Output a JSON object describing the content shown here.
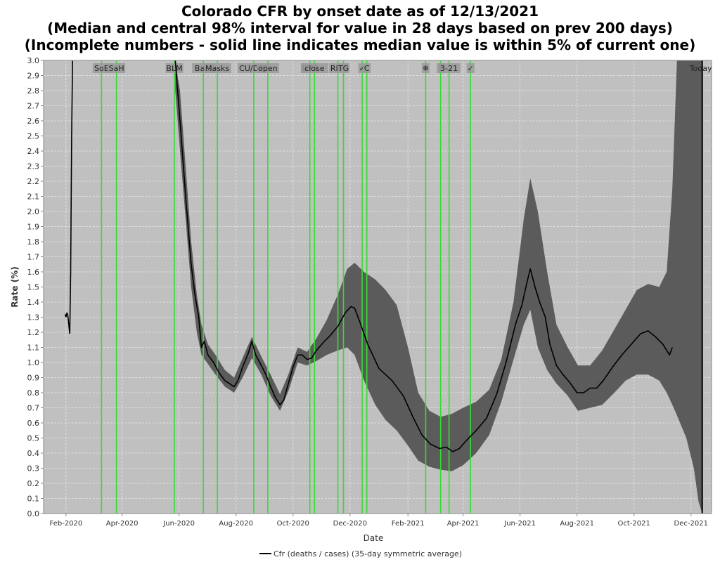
{
  "title_lines": [
    "Colorado CFR by onset date as of 12/13/2021",
    "(Median and central 98% interval for value in 28 days based on prev 200 days)",
    "(Incomplete numbers - solid line indicates median value is within 5% of current one)"
  ],
  "colors": {
    "plot_background": "#c0c0c0",
    "grid": "#e8e8e8",
    "band": "#555555",
    "median_line": "#000000",
    "event_line": "#33dd33",
    "today_line": "#000000"
  },
  "chart_data": {
    "type": "line",
    "title": "Colorado CFR by onset date as of 12/13/2021",
    "subtitle": "(Median and central 98% interval for value in 28 days based on prev 200 days)",
    "note": "(Incomplete numbers - solid line indicates median value is within 5% of current one)",
    "xlabel": "Date",
    "ylabel": "Rate (%)",
    "ylim": [
      0.0,
      3.0
    ],
    "yticks": [
      "0.0",
      "0.1",
      "0.2",
      "0.3",
      "0.4",
      "0.5",
      "0.6",
      "0.7",
      "0.8",
      "0.9",
      "1.0",
      "1.1",
      "1.2",
      "1.3",
      "1.4",
      "1.5",
      "1.6",
      "1.7",
      "1.8",
      "1.9",
      "2.0",
      "2.1",
      "2.2",
      "2.3",
      "2.4",
      "2.5",
      "2.6",
      "2.7",
      "2.8",
      "2.9",
      "3.0"
    ],
    "xlim": [
      "2020-01-08",
      "2021-12-23"
    ],
    "xticks": [
      {
        "date": "2020-02-01",
        "label": "Feb-2020"
      },
      {
        "date": "2020-04-01",
        "label": "Apr-2020"
      },
      {
        "date": "2020-06-01",
        "label": "Jun-2020"
      },
      {
        "date": "2020-08-01",
        "label": "Aug-2020"
      },
      {
        "date": "2020-10-01",
        "label": "Oct-2020"
      },
      {
        "date": "2020-12-01",
        "label": "Dec-2020"
      },
      {
        "date": "2021-02-01",
        "label": "Feb-2021"
      },
      {
        "date": "2021-04-01",
        "label": "Apr-2021"
      },
      {
        "date": "2021-06-01",
        "label": "Jun-2021"
      },
      {
        "date": "2021-08-01",
        "label": "Aug-2021"
      },
      {
        "date": "2021-10-01",
        "label": "Oct-2021"
      },
      {
        "date": "2021-12-01",
        "label": "Dec-2021"
      }
    ],
    "grid": true,
    "legend": {
      "position": "bottom",
      "entries": [
        "Cfr (deaths / cases) (35-day symmetric average)"
      ]
    },
    "events": [
      {
        "date": "2020-03-10",
        "label": "SoE"
      },
      {
        "date": "2020-03-26",
        "label": "SaH"
      },
      {
        "date": "2020-05-27",
        "label": "BLM"
      },
      {
        "date": "2020-06-27",
        "label": "Bars"
      },
      {
        "date": "2020-07-12",
        "label": "Masks"
      },
      {
        "date": "2020-08-20",
        "label": "CU/DPS"
      },
      {
        "date": "2020-09-04",
        "label": "open"
      },
      {
        "date": "2020-10-19",
        "label": "DPS"
      },
      {
        "date": "2020-10-24",
        "label": "close"
      },
      {
        "date": "2020-11-18",
        "label": "RET"
      },
      {
        "date": "2020-11-24",
        "label": "TG"
      },
      {
        "date": "2020-12-14",
        "label": "✓"
      },
      {
        "date": "2020-12-19",
        "label": "C"
      },
      {
        "date": "2021-02-20",
        "label": "❄"
      },
      {
        "date": "2021-03-08",
        "label": "3"
      },
      {
        "date": "2021-03-17",
        "label": "3-21"
      },
      {
        "date": "2021-04-09",
        "label": "✓"
      }
    ],
    "today": {
      "date": "2021-12-13",
      "label": "Today"
    },
    "early_series": [
      {
        "x": "2020-01-31",
        "y": 1.32
      },
      {
        "x": "2020-02-01",
        "y": 1.3
      },
      {
        "x": "2020-02-02",
        "y": 1.33
      },
      {
        "x": "2020-02-03",
        "y": 1.31
      },
      {
        "x": "2020-02-05",
        "y": 1.19
      },
      {
        "x": "2020-02-06",
        "y": 1.6
      },
      {
        "x": "2020-02-07",
        "y": 2.5
      },
      {
        "x": "2020-02-08",
        "y": 3.0
      }
    ],
    "series": [
      {
        "name": "Cfr (deaths / cases) (35-day symmetric average)",
        "points": [
          {
            "x": "2020-05-28",
            "y": 3.0
          },
          {
            "x": "2020-06-02",
            "y": 2.6
          },
          {
            "x": "2020-06-08",
            "y": 2.1
          },
          {
            "x": "2020-06-14",
            "y": 1.65
          },
          {
            "x": "2020-06-18",
            "y": 1.45
          },
          {
            "x": "2020-06-22",
            "y": 1.3
          },
          {
            "x": "2020-06-25",
            "y": 1.1
          },
          {
            "x": "2020-06-28",
            "y": 1.14
          },
          {
            "x": "2020-07-02",
            "y": 1.05
          },
          {
            "x": "2020-07-08",
            "y": 1.0
          },
          {
            "x": "2020-07-14",
            "y": 0.93
          },
          {
            "x": "2020-07-20",
            "y": 0.88
          },
          {
            "x": "2020-07-25",
            "y": 0.86
          },
          {
            "x": "2020-07-30",
            "y": 0.84
          },
          {
            "x": "2020-08-03",
            "y": 0.88
          },
          {
            "x": "2020-08-08",
            "y": 0.97
          },
          {
            "x": "2020-08-14",
            "y": 1.06
          },
          {
            "x": "2020-08-18",
            "y": 1.14
          },
          {
            "x": "2020-08-22",
            "y": 1.05
          },
          {
            "x": "2020-08-28",
            "y": 0.98
          },
          {
            "x": "2020-09-02",
            "y": 0.92
          },
          {
            "x": "2020-09-07",
            "y": 0.84
          },
          {
            "x": "2020-09-12",
            "y": 0.77
          },
          {
            "x": "2020-09-17",
            "y": 0.72
          },
          {
            "x": "2020-09-21",
            "y": 0.75
          },
          {
            "x": "2020-09-26",
            "y": 0.86
          },
          {
            "x": "2020-10-01",
            "y": 0.97
          },
          {
            "x": "2020-10-06",
            "y": 1.05
          },
          {
            "x": "2020-10-11",
            "y": 1.05
          },
          {
            "x": "2020-10-16",
            "y": 1.02
          },
          {
            "x": "2020-10-21",
            "y": 1.03
          },
          {
            "x": "2020-10-26",
            "y": 1.08
          },
          {
            "x": "2020-11-02",
            "y": 1.13
          },
          {
            "x": "2020-11-10",
            "y": 1.18
          },
          {
            "x": "2020-11-18",
            "y": 1.24
          },
          {
            "x": "2020-11-26",
            "y": 1.33
          },
          {
            "x": "2020-12-02",
            "y": 1.37
          },
          {
            "x": "2020-12-06",
            "y": 1.36
          },
          {
            "x": "2020-12-12",
            "y": 1.26
          },
          {
            "x": "2020-12-20",
            "y": 1.12
          },
          {
            "x": "2021-01-01",
            "y": 0.96
          },
          {
            "x": "2021-01-15",
            "y": 0.88
          },
          {
            "x": "2021-01-27",
            "y": 0.78
          },
          {
            "x": "2021-02-07",
            "y": 0.63
          },
          {
            "x": "2021-02-16",
            "y": 0.52
          },
          {
            "x": "2021-02-25",
            "y": 0.46
          },
          {
            "x": "2021-03-07",
            "y": 0.43
          },
          {
            "x": "2021-03-14",
            "y": 0.44
          },
          {
            "x": "2021-03-21",
            "y": 0.41
          },
          {
            "x": "2021-03-28",
            "y": 0.43
          },
          {
            "x": "2021-04-04",
            "y": 0.48
          },
          {
            "x": "2021-04-15",
            "y": 0.55
          },
          {
            "x": "2021-04-26",
            "y": 0.63
          },
          {
            "x": "2021-05-07",
            "y": 0.79
          },
          {
            "x": "2021-05-17",
            "y": 1.0
          },
          {
            "x": "2021-05-27",
            "y": 1.25
          },
          {
            "x": "2021-06-03",
            "y": 1.38
          },
          {
            "x": "2021-06-08",
            "y": 1.52
          },
          {
            "x": "2021-06-12",
            "y": 1.62
          },
          {
            "x": "2021-06-17",
            "y": 1.5
          },
          {
            "x": "2021-06-22",
            "y": 1.4
          },
          {
            "x": "2021-06-28",
            "y": 1.3
          },
          {
            "x": "2021-07-03",
            "y": 1.12
          },
          {
            "x": "2021-07-10",
            "y": 0.98
          },
          {
            "x": "2021-07-17",
            "y": 0.92
          },
          {
            "x": "2021-07-24",
            "y": 0.87
          },
          {
            "x": "2021-08-01",
            "y": 0.8
          },
          {
            "x": "2021-08-08",
            "y": 0.8
          },
          {
            "x": "2021-08-15",
            "y": 0.83
          },
          {
            "x": "2021-08-22",
            "y": 0.83
          },
          {
            "x": "2021-08-29",
            "y": 0.88
          },
          {
            "x": "2021-09-08",
            "y": 0.97
          },
          {
            "x": "2021-09-18",
            "y": 1.05
          },
          {
            "x": "2021-09-28",
            "y": 1.12
          },
          {
            "x": "2021-10-08",
            "y": 1.19
          },
          {
            "x": "2021-10-16",
            "y": 1.21
          },
          {
            "x": "2021-10-24",
            "y": 1.17
          },
          {
            "x": "2021-11-01",
            "y": 1.12
          },
          {
            "x": "2021-11-08",
            "y": 1.05
          },
          {
            "x": "2021-11-11",
            "y": 1.1
          }
        ]
      }
    ],
    "band": {
      "name": "central 98% interval",
      "points": [
        {
          "x": "2020-05-28",
          "lo": 2.8,
          "hi": 3.0
        },
        {
          "x": "2020-06-02",
          "lo": 2.4,
          "hi": 2.8
        },
        {
          "x": "2020-06-08",
          "lo": 1.95,
          "hi": 2.3
        },
        {
          "x": "2020-06-14",
          "lo": 1.5,
          "hi": 1.8
        },
        {
          "x": "2020-06-20",
          "lo": 1.2,
          "hi": 1.45
        },
        {
          "x": "2020-06-25",
          "lo": 1.05,
          "hi": 1.25
        },
        {
          "x": "2020-07-02",
          "lo": 0.99,
          "hi": 1.12
        },
        {
          "x": "2020-07-10",
          "lo": 0.92,
          "hi": 1.05
        },
        {
          "x": "2020-07-20",
          "lo": 0.84,
          "hi": 0.95
        },
        {
          "x": "2020-07-30",
          "lo": 0.8,
          "hi": 0.9
        },
        {
          "x": "2020-08-08",
          "lo": 0.9,
          "hi": 1.03
        },
        {
          "x": "2020-08-18",
          "lo": 1.03,
          "hi": 1.17
        },
        {
          "x": "2020-08-28",
          "lo": 0.92,
          "hi": 1.04
        },
        {
          "x": "2020-09-07",
          "lo": 0.78,
          "hi": 0.92
        },
        {
          "x": "2020-09-17",
          "lo": 0.68,
          "hi": 0.79
        },
        {
          "x": "2020-09-26",
          "lo": 0.81,
          "hi": 0.92
        },
        {
          "x": "2020-10-06",
          "lo": 1.0,
          "hi": 1.1
        },
        {
          "x": "2020-10-16",
          "lo": 0.98,
          "hi": 1.07
        },
        {
          "x": "2020-10-26",
          "lo": 1.01,
          "hi": 1.16
        },
        {
          "x": "2020-11-06",
          "lo": 1.05,
          "hi": 1.28
        },
        {
          "x": "2020-11-18",
          "lo": 1.08,
          "hi": 1.45
        },
        {
          "x": "2020-11-28",
          "lo": 1.1,
          "hi": 1.62
        },
        {
          "x": "2020-12-06",
          "lo": 1.05,
          "hi": 1.66
        },
        {
          "x": "2020-12-16",
          "lo": 0.88,
          "hi": 1.6
        },
        {
          "x": "2020-12-28",
          "lo": 0.72,
          "hi": 1.55
        },
        {
          "x": "2021-01-08",
          "lo": 0.62,
          "hi": 1.48
        },
        {
          "x": "2021-01-20",
          "lo": 0.55,
          "hi": 1.38
        },
        {
          "x": "2021-02-01",
          "lo": 0.45,
          "hi": 1.1
        },
        {
          "x": "2021-02-12",
          "lo": 0.35,
          "hi": 0.8
        },
        {
          "x": "2021-02-24",
          "lo": 0.31,
          "hi": 0.68
        },
        {
          "x": "2021-03-08",
          "lo": 0.29,
          "hi": 0.64
        },
        {
          "x": "2021-03-20",
          "lo": 0.28,
          "hi": 0.66
        },
        {
          "x": "2021-04-01",
          "lo": 0.32,
          "hi": 0.7
        },
        {
          "x": "2021-04-15",
          "lo": 0.4,
          "hi": 0.74
        },
        {
          "x": "2021-04-29",
          "lo": 0.52,
          "hi": 0.82
        },
        {
          "x": "2021-05-12",
          "lo": 0.74,
          "hi": 1.02
        },
        {
          "x": "2021-05-25",
          "lo": 1.02,
          "hi": 1.4
        },
        {
          "x": "2021-06-05",
          "lo": 1.25,
          "hi": 1.95
        },
        {
          "x": "2021-06-12",
          "lo": 1.35,
          "hi": 2.22
        },
        {
          "x": "2021-06-20",
          "lo": 1.1,
          "hi": 2.0
        },
        {
          "x": "2021-06-30",
          "lo": 0.95,
          "hi": 1.6
        },
        {
          "x": "2021-07-10",
          "lo": 0.86,
          "hi": 1.25
        },
        {
          "x": "2021-07-22",
          "lo": 0.78,
          "hi": 1.1
        },
        {
          "x": "2021-08-02",
          "lo": 0.68,
          "hi": 0.98
        },
        {
          "x": "2021-08-15",
          "lo": 0.7,
          "hi": 0.98
        },
        {
          "x": "2021-08-28",
          "lo": 0.72,
          "hi": 1.08
        },
        {
          "x": "2021-09-10",
          "lo": 0.8,
          "hi": 1.22
        },
        {
          "x": "2021-09-22",
          "lo": 0.88,
          "hi": 1.35
        },
        {
          "x": "2021-10-04",
          "lo": 0.92,
          "hi": 1.48
        },
        {
          "x": "2021-10-16",
          "lo": 0.92,
          "hi": 1.52
        },
        {
          "x": "2021-10-28",
          "lo": 0.88,
          "hi": 1.5
        },
        {
          "x": "2021-11-05",
          "lo": 0.8,
          "hi": 1.6
        },
        {
          "x": "2021-11-11",
          "lo": 0.72,
          "hi": 2.15
        },
        {
          "x": "2021-11-16",
          "lo": 0.65,
          "hi": 3.0
        },
        {
          "x": "2021-11-26",
          "lo": 0.5,
          "hi": 3.0
        },
        {
          "x": "2021-12-04",
          "lo": 0.3,
          "hi": 3.0
        },
        {
          "x": "2021-12-09",
          "lo": 0.08,
          "hi": 3.0
        },
        {
          "x": "2021-12-13",
          "lo": 0.0,
          "hi": 3.0
        }
      ]
    }
  }
}
